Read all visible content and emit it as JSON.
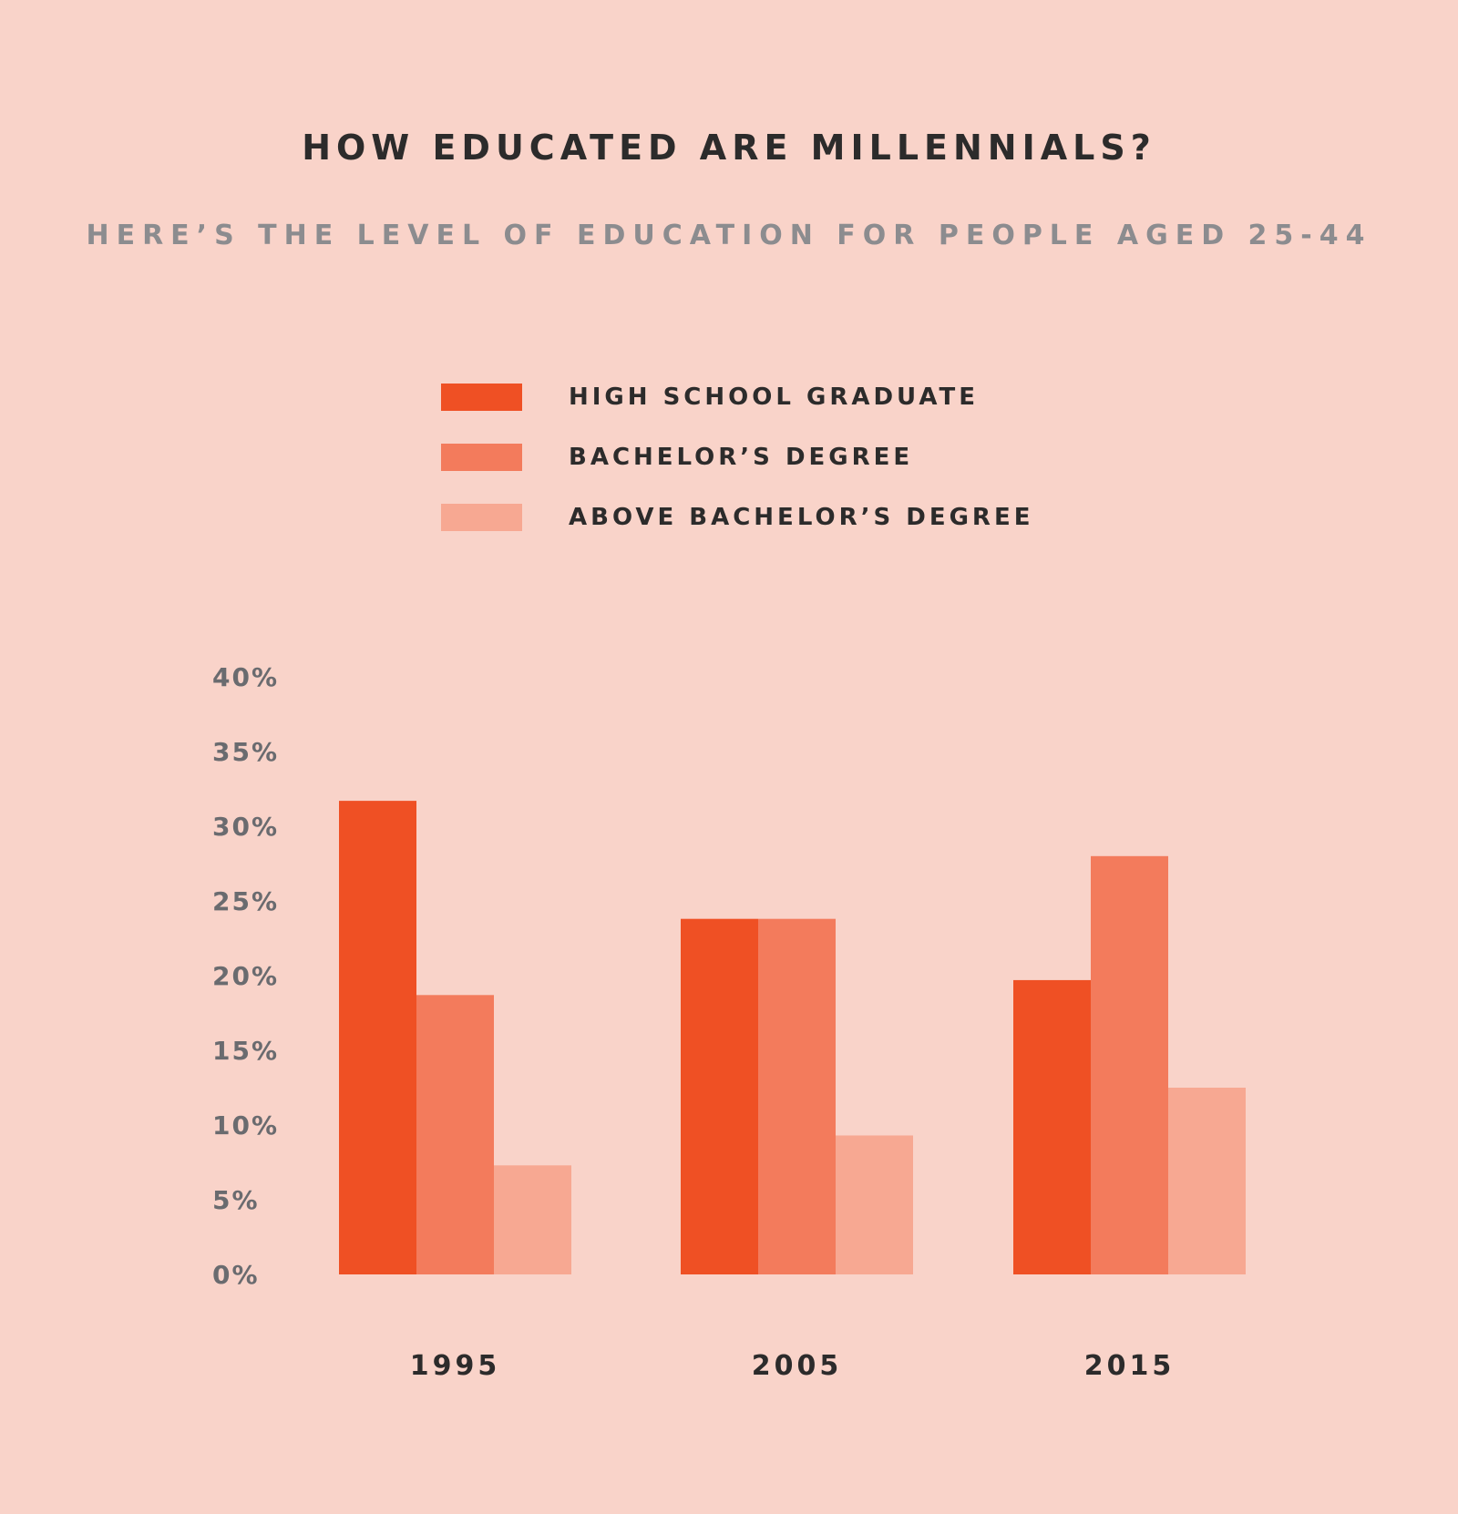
{
  "title": "HOW EDUCATED ARE MILLENNIALS?",
  "subtitle": "HERE’S THE LEVEL OF EDUCATION FOR PEOPLE AGED 25-44",
  "colors": {
    "background": "#f9d3c9",
    "high_school": "#ef5024",
    "bachelors": "#f37b5c",
    "above_bachelors": "#f7a892"
  },
  "chart_data": {
    "type": "bar",
    "title": "HOW EDUCATED ARE MILLENNIALS?",
    "subtitle": "HERE’S THE LEVEL OF EDUCATION FOR PEOPLE AGED 25-44",
    "xlabel": "",
    "ylabel": "",
    "categories": [
      "1995",
      "2005",
      "2015"
    ],
    "series": [
      {
        "name": "HIGH SCHOOL GRADUATE",
        "values": [
          31.7,
          23.8,
          19.7
        ],
        "color": "#ef5024"
      },
      {
        "name": "BACHELOR’S DEGREE",
        "values": [
          18.7,
          23.8,
          28.0
        ],
        "color": "#f37b5c"
      },
      {
        "name": "ABOVE BACHELOR’S DEGREE",
        "values": [
          7.3,
          9.3,
          12.5
        ],
        "color": "#f7a892"
      }
    ],
    "ylim": [
      0,
      40
    ],
    "yticks": [
      0,
      5,
      10,
      15,
      20,
      25,
      30,
      35,
      40
    ],
    "ytick_labels": [
      "0%",
      "5%",
      "10%",
      "15%",
      "20%",
      "25%",
      "30%",
      "35%",
      "40%"
    ],
    "grid": false,
    "legend": "top"
  }
}
